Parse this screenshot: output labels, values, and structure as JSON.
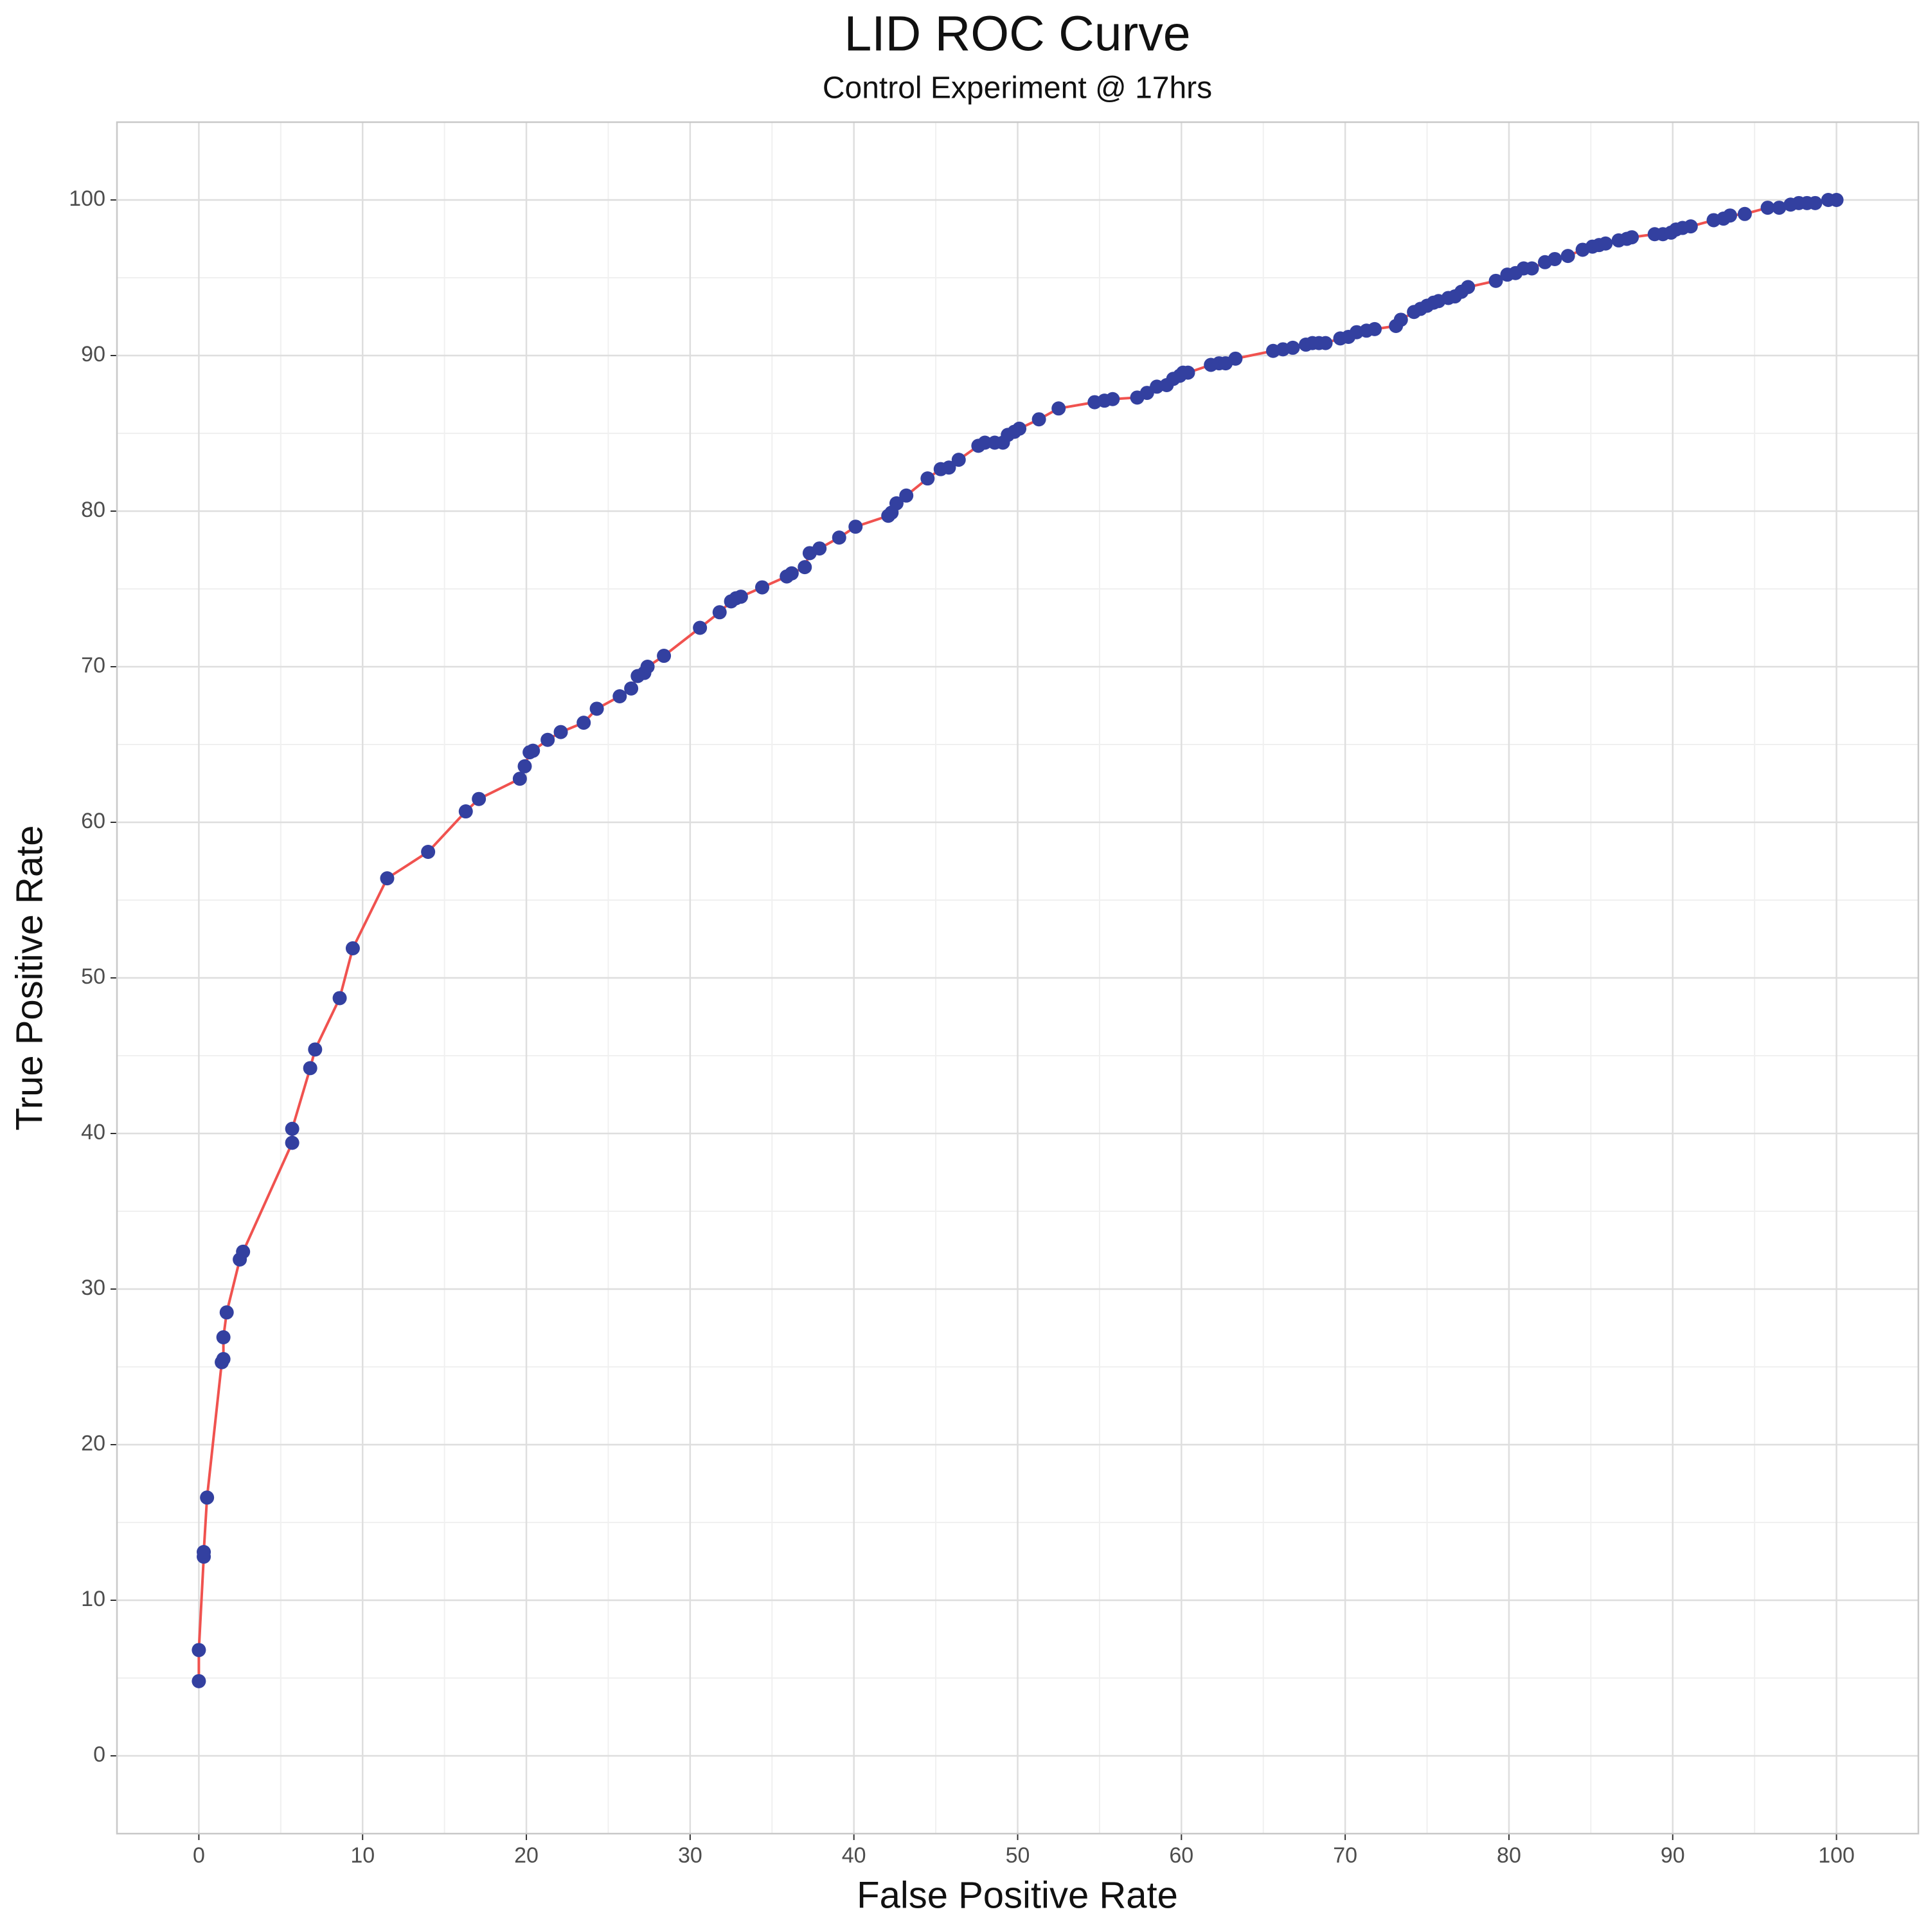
{
  "chart_data": {
    "type": "line",
    "title": "LID ROC Curve",
    "subtitle": "Control Experiment @ 17hrs",
    "x_label": "False Positive Rate",
    "y_label": "True Positive Rate",
    "x": [
      0,
      0,
      0.3,
      0.3,
      0.5,
      1.4,
      1.5,
      1.5,
      1.7,
      2.5,
      2.7,
      5.7,
      5.7,
      6.8,
      7.1,
      8.6,
      9.4,
      11.5,
      14,
      16.3,
      17.1,
      19.6,
      19.9,
      20.2,
      20.4,
      21.3,
      22.1,
      23.5,
      24.3,
      25.7,
      26.4,
      26.8,
      27.2,
      27.4,
      28.4,
      30.6,
      31.8,
      32.5,
      32.8,
      33.1,
      34.4,
      35.9,
      36.2,
      37,
      37.3,
      37.9,
      39.1,
      40.1,
      42.1,
      42.3,
      42.6,
      43.2,
      44.5,
      45.3,
      45.8,
      46.4,
      47.6,
      48,
      48.6,
      49.1,
      49.4,
      49.8,
      50.1,
      51.3,
      52.5,
      54.7,
      55.3,
      55.8,
      57.3,
      57.9,
      58.5,
      59.1,
      59.5,
      59.9,
      60.1,
      60.4,
      61.8,
      62.3,
      62.7,
      63.3,
      65.6,
      66.2,
      66.8,
      67.6,
      68,
      68.4,
      68.8,
      69.7,
      70.2,
      70.7,
      71.3,
      71.8,
      73.1,
      73.4,
      74.2,
      74.6,
      75,
      75.4,
      75.7,
      76.3,
      76.7,
      77.1,
      77.5,
      79.2,
      79.9,
      80.4,
      80.9,
      81.4,
      82.2,
      82.8,
      83.6,
      84.5,
      85.1,
      85.5,
      85.9,
      86.7,
      87.2,
      87.5,
      88.9,
      89.4,
      89.9,
      90.2,
      90.6,
      91.1,
      92.5,
      93.1,
      93.5,
      94.4,
      95.8,
      96.5,
      97.2,
      97.7,
      98.2,
      98.7,
      99.5,
      100
    ],
    "values": [
      4.8,
      6.8,
      12.8,
      13.1,
      16.6,
      25.3,
      25.5,
      26.9,
      28.5,
      31.9,
      32.4,
      39.4,
      40.3,
      44.2,
      45.4,
      48.7,
      51.9,
      56.4,
      58.1,
      60.7,
      61.5,
      62.8,
      63.6,
      64.5,
      64.6,
      65.3,
      65.8,
      66.4,
      67.3,
      68.1,
      68.6,
      69.4,
      69.6,
      70,
      70.7,
      72.5,
      73.5,
      74.2,
      74.4,
      74.5,
      75.1,
      75.8,
      76,
      76.4,
      77.3,
      77.6,
      78.3,
      79,
      79.7,
      79.9,
      80.5,
      81,
      82.1,
      82.7,
      82.8,
      83.3,
      84.2,
      84.4,
      84.4,
      84.4,
      84.9,
      85.1,
      85.3,
      85.9,
      86.6,
      87,
      87.1,
      87.2,
      87.3,
      87.6,
      88,
      88.1,
      88.5,
      88.7,
      88.9,
      88.9,
      89.4,
      89.5,
      89.5,
      89.8,
      90.3,
      90.4,
      90.5,
      90.7,
      90.8,
      90.8,
      90.8,
      91.1,
      91.2,
      91.5,
      91.6,
      91.7,
      91.9,
      92.3,
      92.8,
      93,
      93.2,
      93.4,
      93.5,
      93.7,
      93.8,
      94.1,
      94.4,
      94.8,
      95.2,
      95.3,
      95.6,
      95.6,
      96,
      96.2,
      96.4,
      96.8,
      97,
      97.1,
      97.2,
      97.4,
      97.5,
      97.6,
      97.8,
      97.8,
      97.9,
      98.1,
      98.2,
      98.3,
      98.7,
      98.8,
      99,
      99.1,
      99.5,
      99.5,
      99.7,
      99.8,
      99.8,
      99.8,
      100,
      100
    ],
    "line_color": "#f0524f",
    "marker_color": "#3340a0",
    "markers": true,
    "grid": true,
    "xlim": [
      -5,
      105
    ],
    "ylim": [
      -5,
      105
    ],
    "xticks": [
      0,
      10,
      20,
      30,
      40,
      50,
      60,
      70,
      80,
      90,
      100
    ],
    "yticks": [
      0,
      10,
      20,
      30,
      40,
      50,
      60,
      70,
      80,
      90,
      100
    ]
  }
}
